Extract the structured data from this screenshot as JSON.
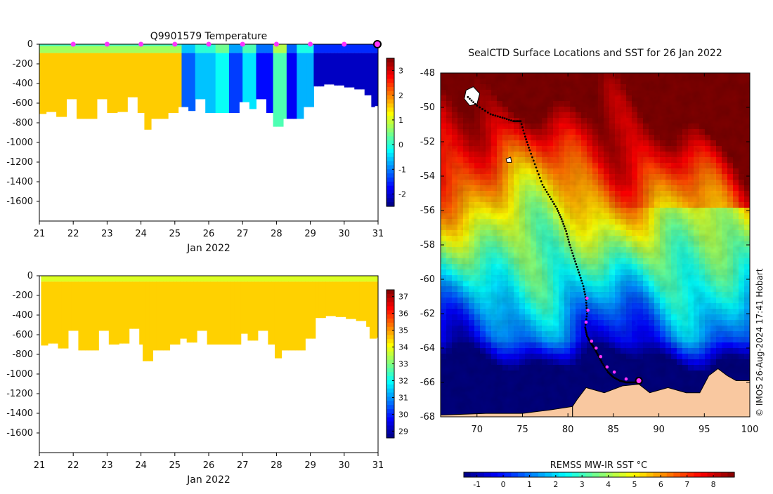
{
  "chart_data": [
    {
      "id": "temperature-section",
      "type": "heatmap",
      "title": "Q9901579  Temperature",
      "xlabel": "Jan 2022",
      "ylabel": "",
      "x_ticks": [
        "21",
        "22",
        "23",
        "24",
        "25",
        "26",
        "27",
        "28",
        "29",
        "30",
        "31"
      ],
      "xlim": [
        21,
        31
      ],
      "y_ticks": [
        "0",
        "-200",
        "-400",
        "-600",
        "-800",
        "-1000",
        "-1200",
        "-1400",
        "-1600"
      ],
      "ylim": [
        -1800,
        0
      ],
      "colorbar_ticks": [
        "3",
        "2",
        "1",
        "0",
        "-1",
        "-2"
      ],
      "colorbar_range": [
        -2.5,
        3.5
      ],
      "profile_depths": [
        [
          21.1,
          -710
        ],
        [
          21.3,
          -690
        ],
        [
          21.6,
          -740
        ],
        [
          21.9,
          -560
        ],
        [
          22.2,
          -760
        ],
        [
          22.5,
          -760
        ],
        [
          22.8,
          -560
        ],
        [
          23.1,
          -700
        ],
        [
          23.4,
          -690
        ],
        [
          23.7,
          -540
        ],
        [
          24.0,
          -700
        ],
        [
          24.15,
          -870
        ],
        [
          24.4,
          -760
        ],
        [
          24.7,
          -760
        ],
        [
          24.9,
          -700
        ],
        [
          25.2,
          -640
        ],
        [
          25.45,
          -680
        ],
        [
          25.7,
          -560
        ],
        [
          26.0,
          -700
        ],
        [
          26.4,
          -700
        ],
        [
          26.7,
          -700
        ],
        [
          27.0,
          -590
        ],
        [
          27.25,
          -660
        ],
        [
          27.5,
          -560
        ],
        [
          27.8,
          -700
        ],
        [
          28.0,
          -840
        ],
        [
          28.25,
          -760
        ],
        [
          28.55,
          -760
        ],
        [
          28.9,
          -640
        ],
        [
          29.2,
          -430
        ],
        [
          29.5,
          -410
        ],
        [
          29.8,
          -420
        ],
        [
          30.1,
          -440
        ],
        [
          30.4,
          -460
        ],
        [
          30.7,
          -520
        ],
        [
          30.85,
          -640
        ],
        [
          31.0,
          -630
        ]
      ],
      "temperature_columns": [
        [
          21,
          25.2,
          1.4
        ],
        [
          25.2,
          25.6,
          -1.2
        ],
        [
          25.6,
          26.2,
          -0.6
        ],
        [
          26.2,
          26.6,
          -0.2
        ],
        [
          26.6,
          27.0,
          -1.4
        ],
        [
          27.0,
          27.4,
          -0.4
        ],
        [
          27.4,
          27.9,
          -1.7
        ],
        [
          27.9,
          28.3,
          0.2
        ],
        [
          28.3,
          28.6,
          -1.8
        ],
        [
          28.6,
          29.1,
          -0.7
        ],
        [
          29.1,
          31,
          -2.1
        ]
      ],
      "upper_layer_temp": 0.6,
      "sample_marker_days": [
        22,
        23,
        24,
        25,
        26,
        27,
        28,
        29,
        30
      ],
      "current_position_day": 31
    },
    {
      "id": "salinity-section",
      "type": "heatmap",
      "title": "",
      "xlabel": "Jan 2022",
      "x_ticks": [
        "21",
        "22",
        "23",
        "24",
        "25",
        "26",
        "27",
        "28",
        "29",
        "30",
        "31"
      ],
      "xlim": [
        21,
        31
      ],
      "y_ticks": [
        "0",
        "-200",
        "-400",
        "-600",
        "-800",
        "-1000",
        "-1200",
        "-1400",
        "-1600"
      ],
      "ylim": [
        -1800,
        0
      ],
      "colorbar_ticks": [
        "37",
        "36",
        "35",
        "34",
        "33",
        "32",
        "31",
        "30",
        "29"
      ],
      "colorbar_range": [
        28.6,
        37.4
      ],
      "deep_value": 34.5,
      "surface_value": 33.8
    },
    {
      "id": "sst-map",
      "type": "heatmap",
      "title": "SealCTD Surface Locations and SST for 26 Jan 2022",
      "x_ticks": [
        "70",
        "75",
        "80",
        "85",
        "90",
        "95",
        "100"
      ],
      "xlim": [
        66,
        100
      ],
      "y_ticks": [
        "-48",
        "-50",
        "-52",
        "-54",
        "-56",
        "-58",
        "-60",
        "-62",
        "-64",
        "-66",
        "-68"
      ],
      "ylim": [
        -68,
        -48
      ],
      "colorbar_label": "REMSS MW-IR SST °C",
      "colorbar_ticks": [
        "-1",
        "0",
        "1",
        "2",
        "3",
        "4",
        "5",
        "6",
        "7",
        "8"
      ],
      "colorbar_range": [
        -1.5,
        8.8
      ],
      "track_lon": [
        69.0,
        70.0,
        71.5,
        72.8,
        74.0,
        74.8,
        75.3,
        75.8,
        76.5,
        77.2,
        78.0,
        78.8,
        79.3,
        79.8,
        80.2,
        80.7,
        81.2,
        81.7,
        82.0,
        82.1,
        81.9,
        82.1,
        82.5,
        82.9,
        83.3,
        83.8,
        84.4,
        85.0,
        85.7,
        86.4,
        87.0,
        87.6
      ],
      "track_lat": [
        -49.4,
        -49.9,
        -50.4,
        -50.6,
        -50.8,
        -50.8,
        -51.7,
        -52.5,
        -53.5,
        -54.5,
        -55.2,
        -55.9,
        -56.5,
        -57.2,
        -58.0,
        -58.8,
        -59.6,
        -60.4,
        -61.2,
        -62.0,
        -62.8,
        -63.3,
        -63.7,
        -64.0,
        -64.4,
        -64.9,
        -65.4,
        -65.7,
        -65.9,
        -66.0,
        -66.0,
        -66.0
      ],
      "track_highlight_lon": [
        82.1,
        82.2,
        82.0,
        82.6,
        83.1,
        83.6,
        84.3,
        85.1,
        86.4
      ],
      "track_highlight_lat": [
        -61.1,
        -61.8,
        -62.5,
        -63.6,
        -64.0,
        -64.5,
        -65.1,
        -65.4,
        -65.8
      ],
      "current_position": [
        87.8,
        -65.9
      ]
    }
  ],
  "credit": "© IMOS 26-Aug-2024 17:41 Hobart",
  "colors": {
    "marker": "#ff33ff",
    "land": "#f9c8a0",
    "current_marker_fill": "#ff33ff"
  }
}
